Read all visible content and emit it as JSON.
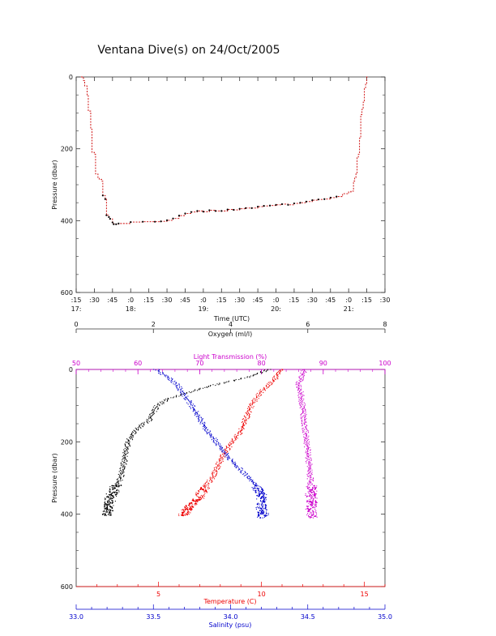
{
  "title": "Ventana Dive(s) on 24/Oct/2005",
  "colors": {
    "axis": "#333333",
    "dive_track": "#cc0000",
    "dive_points": "#000000",
    "oxygen": "#000000",
    "temperature": "#ee0000",
    "salinity": "#0000cc",
    "light_transmission": "#cc00cc"
  },
  "chart_data": [
    {
      "type": "line",
      "title": "Ventana Dive(s) on 24/Oct/2005",
      "xlabel": "Time (UTC)",
      "ylabel": "Pressure (dbar)",
      "ylim": [
        600,
        0
      ],
      "y_ticks": [
        "0",
        "200",
        "400",
        "600"
      ],
      "x_tick_labels": [
        ":15",
        ":30",
        ":45",
        ":0",
        ":15",
        ":30",
        ":45",
        ":0",
        ":15",
        ":30",
        ":45",
        ":0",
        ":15",
        ":30",
        ":45",
        ":0",
        ":15",
        ":30"
      ],
      "hour_labels": [
        "17:",
        "18:",
        "19:",
        "20:",
        "21:"
      ],
      "series": [
        {
          "x": [
            "17:19",
            "17:21",
            "17:22",
            "17:24",
            "17:25",
            "17:27",
            "17:28",
            "17:30",
            "17:31",
            "17:33",
            "17:34",
            "17:36",
            "17:37",
            "17:39",
            "17:40",
            "17:42",
            "17:43",
            "17:45",
            "17:46",
            "17:48",
            "17:50",
            "18:00",
            "18:10",
            "18:20",
            "18:25",
            "18:30",
            "18:35",
            "18:40",
            "18:45",
            "18:50",
            "18:55",
            "19:00",
            "19:05",
            "19:10",
            "19:15",
            "19:20",
            "19:25",
            "19:30",
            "19:35",
            "19:40",
            "19:45",
            "19:50",
            "19:55",
            "20:00",
            "20:05",
            "20:10",
            "20:15",
            "20:20",
            "20:25",
            "20:30",
            "20:35",
            "20:40",
            "20:45",
            "20:50",
            "20:55",
            "21:00",
            "21:02",
            "21:04",
            "21:05",
            "21:06",
            "21:07",
            "21:08",
            "21:09",
            "21:10",
            "21:11",
            "21:12",
            "21:13",
            "21:14",
            "21:15",
            "21:16"
          ],
          "y": [
            0,
            10,
            25,
            50,
            95,
            145,
            210,
            215,
            270,
            280,
            285,
            290,
            330,
            340,
            385,
            390,
            395,
            405,
            410,
            410,
            408,
            404,
            403,
            403,
            402,
            399,
            394,
            386,
            380,
            376,
            373,
            375,
            371,
            373,
            373,
            369,
            370,
            367,
            365,
            365,
            361,
            359,
            358,
            356,
            354,
            356,
            352,
            350,
            347,
            343,
            341,
            340,
            336,
            333,
            325,
            320,
            318,
            290,
            280,
            270,
            225,
            215,
            170,
            105,
            90,
            70,
            30,
            20,
            0,
            0
          ]
        }
      ]
    },
    {
      "type": "scatter",
      "ylabel": "Pressure (dbar)",
      "ylim": [
        600,
        0
      ],
      "y_ticks": [
        "0",
        "200",
        "400",
        "600"
      ],
      "axes": {
        "oxygen": {
          "label": "Oxygen (ml/l)",
          "range": [
            0,
            8
          ],
          "ticks": [
            "0",
            "2",
            "4",
            "6",
            "8"
          ]
        },
        "light_transmission": {
          "label": "Light Transmission (%)",
          "range": [
            50,
            100
          ],
          "ticks": [
            "50",
            "60",
            "70",
            "80",
            "90",
            "100"
          ]
        },
        "temperature": {
          "label": "Temperature (C)",
          "range": [
            1,
            16
          ],
          "ticks": [
            "5",
            "10",
            "15"
          ]
        },
        "salinity": {
          "label": "Salinity (psu)",
          "range": [
            33.0,
            35.0
          ],
          "ticks": [
            "33.0",
            "33.5",
            "34.0",
            "34.5",
            "35.0"
          ]
        }
      },
      "series": [
        {
          "name": "Oxygen",
          "axis": "oxygen",
          "profile": [
            [
              5.0,
              0
            ],
            [
              4.5,
              20
            ],
            [
              3.5,
              45
            ],
            [
              2.4,
              80
            ],
            [
              2.1,
              100
            ],
            [
              1.9,
              140
            ],
            [
              1.5,
              170
            ],
            [
              1.35,
              200
            ],
            [
              1.25,
              250
            ],
            [
              1.15,
              300
            ],
            [
              1.05,
              320
            ],
            [
              0.9,
              350
            ],
            [
              0.85,
              380
            ],
            [
              0.8,
              405
            ]
          ]
        },
        {
          "name": "Temperature",
          "axis": "temperature",
          "profile": [
            [
              11.0,
              0
            ],
            [
              10.6,
              30
            ],
            [
              10.0,
              60
            ],
            [
              9.5,
              100
            ],
            [
              9.0,
              170
            ],
            [
              8.2,
              230
            ],
            [
              7.6,
              300
            ],
            [
              7.2,
              330
            ],
            [
              6.9,
              360
            ],
            [
              6.5,
              380
            ],
            [
              6.2,
              405
            ]
          ]
        },
        {
          "name": "Salinity",
          "axis": "salinity",
          "profile": [
            [
              33.52,
              0
            ],
            [
              33.65,
              40
            ],
            [
              33.75,
              100
            ],
            [
              33.85,
              170
            ],
            [
              34.0,
              250
            ],
            [
              34.12,
              300
            ],
            [
              34.17,
              320
            ],
            [
              34.2,
              350
            ],
            [
              34.2,
              380
            ],
            [
              34.21,
              400
            ],
            [
              34.21,
              410
            ]
          ]
        },
        {
          "name": "Light Transmission",
          "axis": "light_transmission",
          "profile": [
            [
              87.0,
              0
            ],
            [
              86.0,
              40
            ],
            [
              86.5,
              80
            ],
            [
              87.0,
              150
            ],
            [
              87.5,
              220
            ],
            [
              87.8,
              280
            ],
            [
              88.0,
              320
            ],
            [
              88.1,
              360
            ],
            [
              88.1,
              400
            ],
            [
              88.1,
              410
            ]
          ]
        }
      ]
    }
  ]
}
